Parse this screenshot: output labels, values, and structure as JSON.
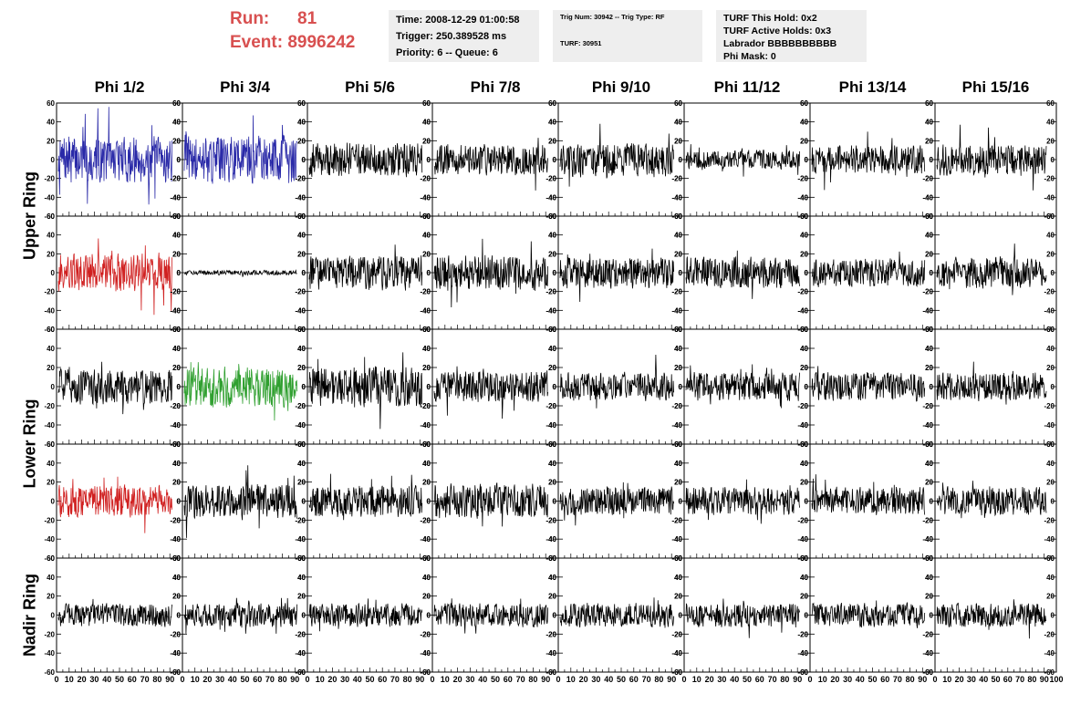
{
  "header": {
    "run_label": "Run:",
    "run_value": "81",
    "event_label": "Event:",
    "event_value": "8996242",
    "time": "Time: 2008-12-29 01:00:58",
    "trigger": "Trigger: 250.389528 ms",
    "priority": "Priority: 6 -- Queue: 6",
    "trig_num": "Trig Num: 30942 -- Trig Type: RF",
    "turf": "TURF: 30951",
    "turf_this_hold": "TURF This Hold: 0x2",
    "turf_active_holds": "TURF Active Holds: 0x3",
    "labrador": "Labrador BBBBBBBBBB",
    "phi_mask": "Phi Mask: 0"
  },
  "columns": [
    "Phi 1/2",
    "Phi 3/4",
    "Phi 5/6",
    "Phi 7/8",
    "Phi 9/10",
    "Phi 11/12",
    "Phi 13/14",
    "Phi 15/16"
  ],
  "rings": [
    "Upper Ring",
    "Lower Ring",
    "Nadir Ring"
  ],
  "colors": {
    "black": "#000000",
    "blue": "#2a2aa8",
    "red": "#d02020",
    "green": "#30a030",
    "run_text": "#d85050"
  },
  "chart_data": {
    "type": "line",
    "description_rows": 5,
    "ylim": [
      -60,
      60
    ],
    "yticks": [
      -60,
      -40,
      -20,
      0,
      20,
      40,
      60
    ],
    "xlim": [
      0,
      100
    ],
    "xticks": [
      0,
      10,
      20,
      30,
      40,
      50,
      60,
      70,
      80,
      90,
      100
    ],
    "panel_colors": [
      [
        "blue",
        "blue",
        "black",
        "black",
        "black",
        "black",
        "black",
        "black"
      ],
      [
        "red",
        "black",
        "black",
        "black",
        "black",
        "black",
        "black",
        "black"
      ],
      [
        "black",
        "green",
        "black",
        "black",
        "black",
        "black",
        "black",
        "black"
      ],
      [
        "red",
        "black",
        "black",
        "black",
        "black",
        "black",
        "black",
        "black"
      ],
      [
        "black",
        "black",
        "black",
        "black",
        "black",
        "black",
        "black",
        "black"
      ]
    ],
    "panel_amplitudes": [
      [
        30,
        30,
        22,
        20,
        22,
        12,
        18,
        20
      ],
      [
        25,
        3,
        22,
        22,
        20,
        20,
        18,
        20
      ],
      [
        22,
        25,
        25,
        20,
        18,
        18,
        18,
        18
      ],
      [
        20,
        22,
        20,
        22,
        18,
        18,
        18,
        18
      ],
      [
        15,
        15,
        15,
        15,
        15,
        15,
        15,
        15
      ]
    ]
  }
}
